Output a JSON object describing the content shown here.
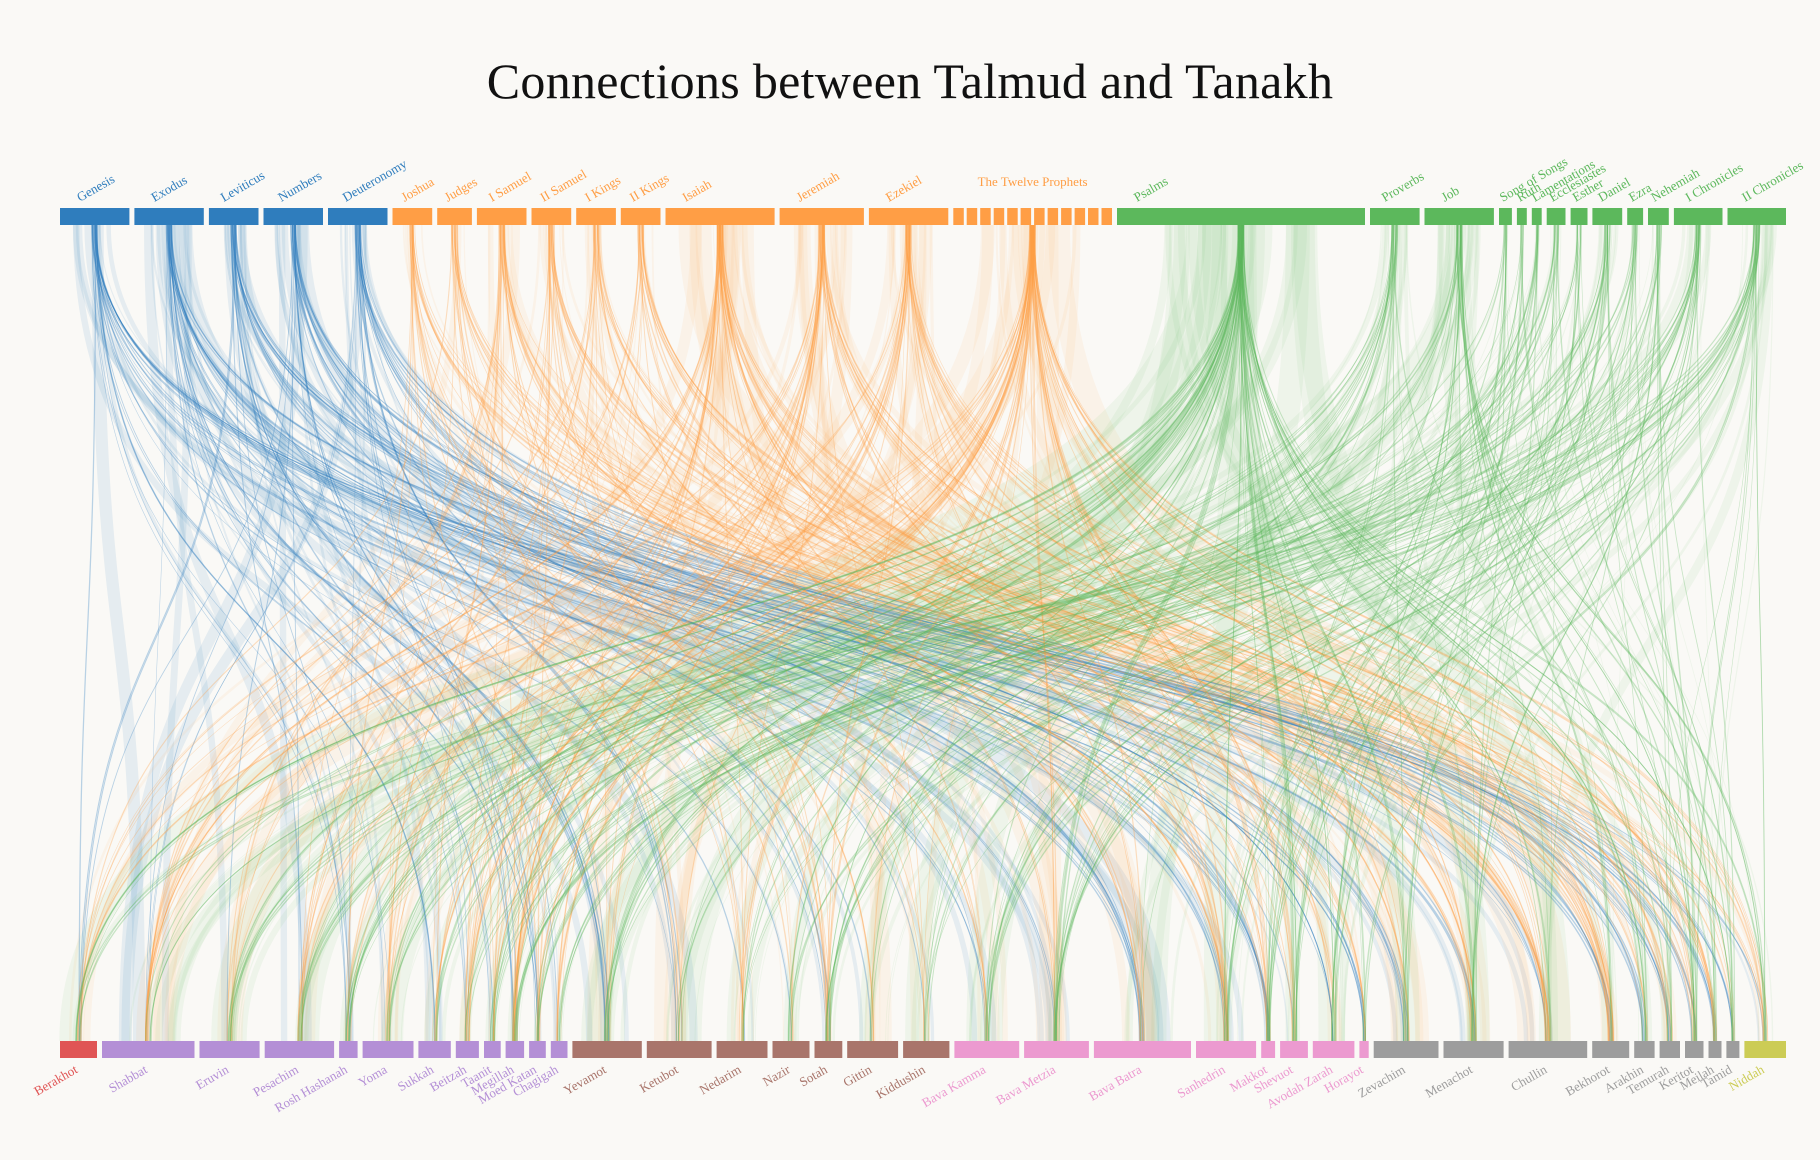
{
  "title": "Connections between Talmud and Tanakh",
  "colors": {
    "torah": "#2f7dbd",
    "prophets": "#ff9e45",
    "writings": "#5cb85c",
    "zeraim": "#e05555",
    "moed": "#b48fd6",
    "nashim": "#a9756b",
    "nezikin": "#ec9ad0",
    "kodashim": "#9d9d9d",
    "tohorot": "#cccc55"
  },
  "tanakh": [
    {
      "name": "Genesis",
      "group": "torah",
      "weight": 7
    },
    {
      "name": "Exodus",
      "group": "torah",
      "weight": 7
    },
    {
      "name": "Leviticus",
      "group": "torah",
      "weight": 5
    },
    {
      "name": "Numbers",
      "group": "torah",
      "weight": 6
    },
    {
      "name": "Deuteronomy",
      "group": "torah",
      "weight": 6
    },
    {
      "name": "Joshua",
      "group": "prophets",
      "weight": 4
    },
    {
      "name": "Judges",
      "group": "prophets",
      "weight": 3.5
    },
    {
      "name": "I Samuel",
      "group": "prophets",
      "weight": 5
    },
    {
      "name": "II Samuel",
      "group": "prophets",
      "weight": 4
    },
    {
      "name": "I Kings",
      "group": "prophets",
      "weight": 4
    },
    {
      "name": "II Kings",
      "group": "prophets",
      "weight": 4
    },
    {
      "name": "Isaiah",
      "group": "prophets",
      "weight": 11
    },
    {
      "name": "Jeremiah",
      "group": "prophets",
      "weight": 8.5
    },
    {
      "name": "Ezekiel",
      "group": "prophets",
      "weight": 8
    },
    {
      "name": "The Twelve Prophets",
      "group": "prophets",
      "weight": 16,
      "segments": 12
    },
    {
      "name": "Psalms",
      "group": "writings",
      "weight": 25
    },
    {
      "name": "Proverbs",
      "group": "writings",
      "weight": 5
    },
    {
      "name": "Job",
      "group": "writings",
      "weight": 7
    },
    {
      "name": "Song of Songs",
      "group": "writings",
      "weight": 1.3
    },
    {
      "name": "Ruth",
      "group": "writings",
      "weight": 1
    },
    {
      "name": "Lamentations",
      "group": "writings",
      "weight": 1
    },
    {
      "name": "Ecclesiastes",
      "group": "writings",
      "weight": 1.9
    },
    {
      "name": "Esther",
      "group": "writings",
      "weight": 1.7
    },
    {
      "name": "Daniel",
      "group": "writings",
      "weight": 3
    },
    {
      "name": "Ezra",
      "group": "writings",
      "weight": 1.6
    },
    {
      "name": "Nehemiah",
      "group": "writings",
      "weight": 2.1
    },
    {
      "name": "I Chronicles",
      "group": "writings",
      "weight": 4.9
    },
    {
      "name": "II Chronicles",
      "group": "writings",
      "weight": 5.9
    }
  ],
  "talmud": [
    {
      "name": "Berakhot",
      "group": "zeraim",
      "weight": 4
    },
    {
      "name": "Shabbat",
      "group": "moed",
      "weight": 10
    },
    {
      "name": "Eruvin",
      "group": "moed",
      "weight": 6.5
    },
    {
      "name": "Pesachim",
      "group": "moed",
      "weight": 7.5
    },
    {
      "name": "Rosh Hashanah",
      "group": "moed",
      "weight": 2
    },
    {
      "name": "Yoma",
      "group": "moed",
      "weight": 5.5
    },
    {
      "name": "Sukkah",
      "group": "moed",
      "weight": 3.5
    },
    {
      "name": "Beitzah",
      "group": "moed",
      "weight": 2.5
    },
    {
      "name": "Taanit",
      "group": "moed",
      "weight": 1.8
    },
    {
      "name": "Megillah",
      "group": "moed",
      "weight": 2
    },
    {
      "name": "Moed Katan",
      "group": "moed",
      "weight": 1.8
    },
    {
      "name": "Chagigah",
      "group": "moed",
      "weight": 1.8
    },
    {
      "name": "Yevamot",
      "group": "nashim",
      "weight": 7.5
    },
    {
      "name": "Ketubot",
      "group": "nashim",
      "weight": 7
    },
    {
      "name": "Nedarim",
      "group": "nashim",
      "weight": 5.5
    },
    {
      "name": "Nazir",
      "group": "nashim",
      "weight": 4
    },
    {
      "name": "Sotah",
      "group": "nashim",
      "weight": 3
    },
    {
      "name": "Gittin",
      "group": "nashim",
      "weight": 5.5
    },
    {
      "name": "Kiddushin",
      "group": "nashim",
      "weight": 5
    },
    {
      "name": "Bava Kamma",
      "group": "nezikin",
      "weight": 7
    },
    {
      "name": "Bava Metzia",
      "group": "nezikin",
      "weight": 7
    },
    {
      "name": "Bava Batra",
      "group": "nezikin",
      "weight": 10.5
    },
    {
      "name": "Sanhedrin",
      "group": "nezikin",
      "weight": 6.5
    },
    {
      "name": "Makkot",
      "group": "nezikin",
      "weight": 1.5
    },
    {
      "name": "Shevuot",
      "group": "nezikin",
      "weight": 3
    },
    {
      "name": "Avodah Zarah",
      "group": "nezikin",
      "weight": 4.5
    },
    {
      "name": "Horayot",
      "group": "nezikin",
      "weight": 1
    },
    {
      "name": "Zevachim",
      "group": "kodashim",
      "weight": 7
    },
    {
      "name": "Menachot",
      "group": "kodashim",
      "weight": 6.5
    },
    {
      "name": "Chullin",
      "group": "kodashim",
      "weight": 8.5
    },
    {
      "name": "Bekhorot",
      "group": "kodashim",
      "weight": 4
    },
    {
      "name": "Arakhin",
      "group": "kodashim",
      "weight": 2.2
    },
    {
      "name": "Temurah",
      "group": "kodashim",
      "weight": 2.2
    },
    {
      "name": "Keritot",
      "group": "kodashim",
      "weight": 2
    },
    {
      "name": "Meilah",
      "group": "kodashim",
      "weight": 1.4
    },
    {
      "name": "Tamid",
      "group": "kodashim",
      "weight": 1.4
    },
    {
      "name": "Niddah",
      "group": "tohorot",
      "weight": 4.5
    }
  ]
}
